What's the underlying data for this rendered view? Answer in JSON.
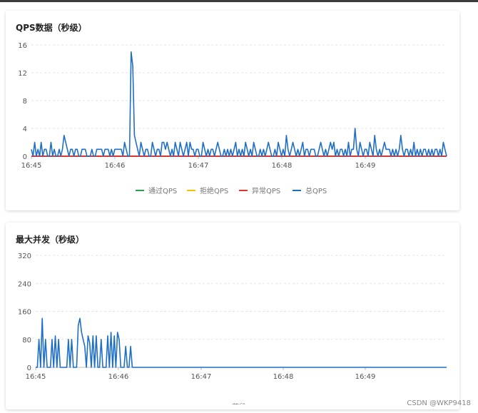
{
  "charts": [
    {
      "title": "QPS数据（秒级）",
      "type": "line",
      "x_ticks": [
        "16:45",
        "16:46",
        "16:47",
        "16:48",
        "16:49"
      ],
      "y_ticks": [
        0,
        4,
        8,
        12,
        16
      ],
      "ylim": [
        0,
        16
      ],
      "legend": [
        {
          "name": "通过QPS",
          "color": "#2e9f4a"
        },
        {
          "name": "拒绝QPS",
          "color": "#f2c200"
        },
        {
          "name": "异常QPS",
          "color": "#e0362c"
        },
        {
          "name": "总QPS",
          "color": "#1f6fc6"
        }
      ],
      "series": [
        {
          "name": "异常QPS",
          "color": "#e0362c",
          "values": [
            0,
            0,
            0,
            0,
            0,
            0,
            0,
            0,
            0,
            0,
            0,
            0,
            0,
            0,
            0,
            0,
            0,
            0,
            0,
            0,
            0,
            0,
            0,
            0,
            0,
            0,
            0,
            0,
            0,
            0,
            0,
            0,
            0,
            0,
            0,
            0,
            0,
            0,
            0,
            0,
            0,
            0,
            0,
            0,
            0,
            0,
            0,
            0,
            0,
            0,
            0,
            0,
            0,
            0,
            0,
            0,
            0,
            0,
            0,
            0,
            0,
            0,
            0,
            0,
            0,
            0,
            0,
            0,
            0,
            0,
            0,
            0,
            0,
            0,
            0,
            0,
            0,
            0,
            0,
            0,
            0,
            0,
            0,
            0,
            0,
            0,
            0,
            0,
            0,
            0,
            0,
            0,
            0,
            0,
            0,
            0,
            0,
            0,
            0,
            0,
            0,
            0,
            0,
            0,
            0,
            0,
            0,
            0,
            0,
            0,
            0,
            0,
            0,
            0,
            0,
            0,
            0,
            0,
            0,
            0,
            0,
            0,
            0,
            0,
            0,
            0,
            0,
            0,
            0,
            0,
            0,
            0,
            0,
            0,
            0,
            0,
            0,
            0,
            0,
            0,
            0,
            0,
            0,
            0,
            0,
            0,
            0,
            0,
            0,
            0,
            0,
            0,
            0,
            0,
            0,
            0,
            0,
            0,
            0,
            0,
            0,
            0,
            0,
            0,
            0,
            0,
            0,
            0,
            0,
            0,
            0,
            0,
            0,
            0,
            0,
            0,
            0,
            0,
            0,
            0,
            0,
            0,
            0,
            0,
            0,
            0,
            0,
            0,
            0,
            0,
            0,
            0,
            0,
            0,
            0,
            0,
            0,
            0,
            0,
            0,
            0,
            0,
            0,
            0,
            0,
            0,
            0,
            0,
            0,
            0,
            0,
            0,
            0,
            0,
            0,
            0,
            0,
            0,
            0,
            0,
            0,
            0,
            0,
            0,
            0,
            0,
            0,
            0,
            0,
            0,
            0,
            0,
            0,
            0,
            0,
            0,
            0,
            0,
            0,
            0,
            0,
            0,
            0,
            0,
            0,
            0,
            0,
            0,
            0,
            0,
            0,
            0,
            0,
            0,
            0,
            0,
            0,
            0,
            0,
            0,
            0,
            0,
            0,
            0,
            0,
            0,
            0,
            0,
            0,
            0,
            0,
            0,
            0,
            0,
            0,
            0
          ]
        },
        {
          "name": "总QPS",
          "color": "#1f6fc6",
          "values": [
            1,
            0,
            2,
            0,
            1,
            0,
            2,
            0,
            1,
            1,
            0,
            0,
            2,
            0,
            1,
            0,
            0,
            1,
            0,
            1,
            3,
            2,
            1,
            0,
            1,
            1,
            0,
            1,
            1,
            0,
            0,
            1,
            1,
            1,
            0,
            0,
            0,
            1,
            0,
            0,
            1,
            1,
            1,
            1,
            0,
            1,
            1,
            1,
            0,
            1,
            0,
            1,
            1,
            1,
            1,
            1,
            0,
            2,
            1,
            0,
            0,
            15,
            13,
            3,
            2,
            1,
            0,
            2,
            1,
            0,
            1,
            1,
            0,
            0,
            2,
            1,
            0,
            1,
            1,
            0,
            2,
            2,
            1,
            2,
            1,
            0,
            1,
            0,
            2,
            1,
            0,
            2,
            1,
            0,
            1,
            2,
            0,
            2,
            1,
            1,
            0,
            1,
            1,
            0,
            0,
            2,
            1,
            0,
            1,
            0,
            1,
            1,
            0,
            1,
            2,
            1,
            0,
            0,
            1,
            0,
            1,
            0,
            1,
            0,
            1,
            2,
            0,
            1,
            0,
            1,
            0,
            2,
            1,
            0,
            1,
            0,
            2,
            1,
            0,
            0,
            1,
            0,
            1,
            0,
            1,
            2,
            1,
            0,
            0,
            1,
            0,
            2,
            1,
            0,
            1,
            0,
            3,
            1,
            0,
            1,
            2,
            1,
            0,
            1,
            0,
            1,
            2,
            0,
            1,
            1,
            0,
            1,
            1,
            1,
            0,
            0,
            1,
            2,
            1,
            0,
            1,
            0,
            1,
            2,
            1,
            2,
            0,
            1,
            0,
            1,
            1,
            0,
            1,
            0,
            2,
            0,
            1,
            1,
            4,
            1,
            0,
            2,
            1,
            0,
            1,
            1,
            0,
            2,
            1,
            0,
            3,
            1,
            0,
            1,
            0,
            1,
            2,
            1,
            1,
            1,
            0,
            1,
            0,
            1,
            0,
            1,
            3,
            1,
            0,
            1,
            1,
            0,
            1,
            0,
            2,
            0,
            1,
            0,
            1,
            0,
            1,
            1,
            0,
            1,
            0,
            1,
            0,
            1,
            1,
            0,
            1,
            0,
            2,
            1,
            0
          ]
        }
      ]
    },
    {
      "title": "最大并发（秒级）",
      "type": "line",
      "x_ticks": [
        "16:45",
        "16:46",
        "16:47",
        "16:48",
        "16:49"
      ],
      "y_ticks": [
        0,
        80,
        160,
        240,
        320
      ],
      "ylim": [
        0,
        320
      ],
      "series": [
        {
          "name": "",
          "color": "#1f6fc6",
          "values": [
            0,
            0,
            80,
            0,
            140,
            0,
            80,
            0,
            0,
            0,
            80,
            0,
            90,
            0,
            80,
            0,
            0,
            0,
            0,
            0,
            80,
            0,
            80,
            0,
            0,
            0,
            120,
            140,
            100,
            80,
            60,
            0,
            90,
            70,
            0,
            90,
            0,
            90,
            0,
            0,
            80,
            0,
            0,
            0,
            90,
            0,
            100,
            0,
            90,
            0,
            100,
            80,
            0,
            0,
            0,
            60,
            0,
            0,
            60,
            0,
            0,
            0,
            0,
            0,
            0,
            0,
            0,
            0,
            0,
            0,
            0,
            0,
            0,
            0,
            0,
            0,
            0,
            0,
            0,
            0,
            0,
            0,
            0,
            0,
            0,
            0,
            0,
            0,
            0,
            0,
            0,
            0,
            0,
            0,
            0,
            0,
            0,
            0,
            0,
            0,
            0,
            0,
            0,
            0,
            0,
            0,
            0,
            0,
            0,
            0,
            0,
            0,
            0,
            0,
            0,
            0,
            0,
            0,
            0,
            0,
            0,
            0,
            0,
            0,
            0,
            0,
            0,
            0,
            0,
            0,
            0,
            0,
            0,
            0,
            0,
            0,
            0,
            0,
            0,
            0,
            0,
            0,
            0,
            0,
            0,
            0,
            0,
            0,
            0,
            0,
            0,
            0,
            0,
            0,
            0,
            0,
            0,
            0,
            0,
            0,
            0,
            0,
            0,
            0,
            0,
            0,
            0,
            0,
            0,
            0,
            0,
            0,
            0,
            0,
            0,
            0,
            0,
            0,
            0,
            0,
            0,
            0,
            0,
            0,
            0,
            0,
            0,
            0,
            0,
            0,
            0,
            0,
            0,
            0,
            0,
            0,
            0,
            0,
            0,
            0,
            0,
            0,
            0,
            0,
            0,
            0,
            0,
            0,
            0,
            0,
            0,
            0,
            0,
            0,
            0,
            0,
            0,
            0,
            0,
            0,
            0,
            0,
            0,
            0,
            0,
            0,
            0,
            0,
            0,
            0,
            0,
            0,
            0,
            0,
            0,
            0,
            0,
            0,
            0,
            0,
            0,
            0,
            0,
            0,
            0,
            0,
            0,
            0,
            0,
            0,
            0,
            0
          ]
        }
      ]
    }
  ],
  "watermark": "CSDN @WKP9418",
  "cut_label": "节段"
}
